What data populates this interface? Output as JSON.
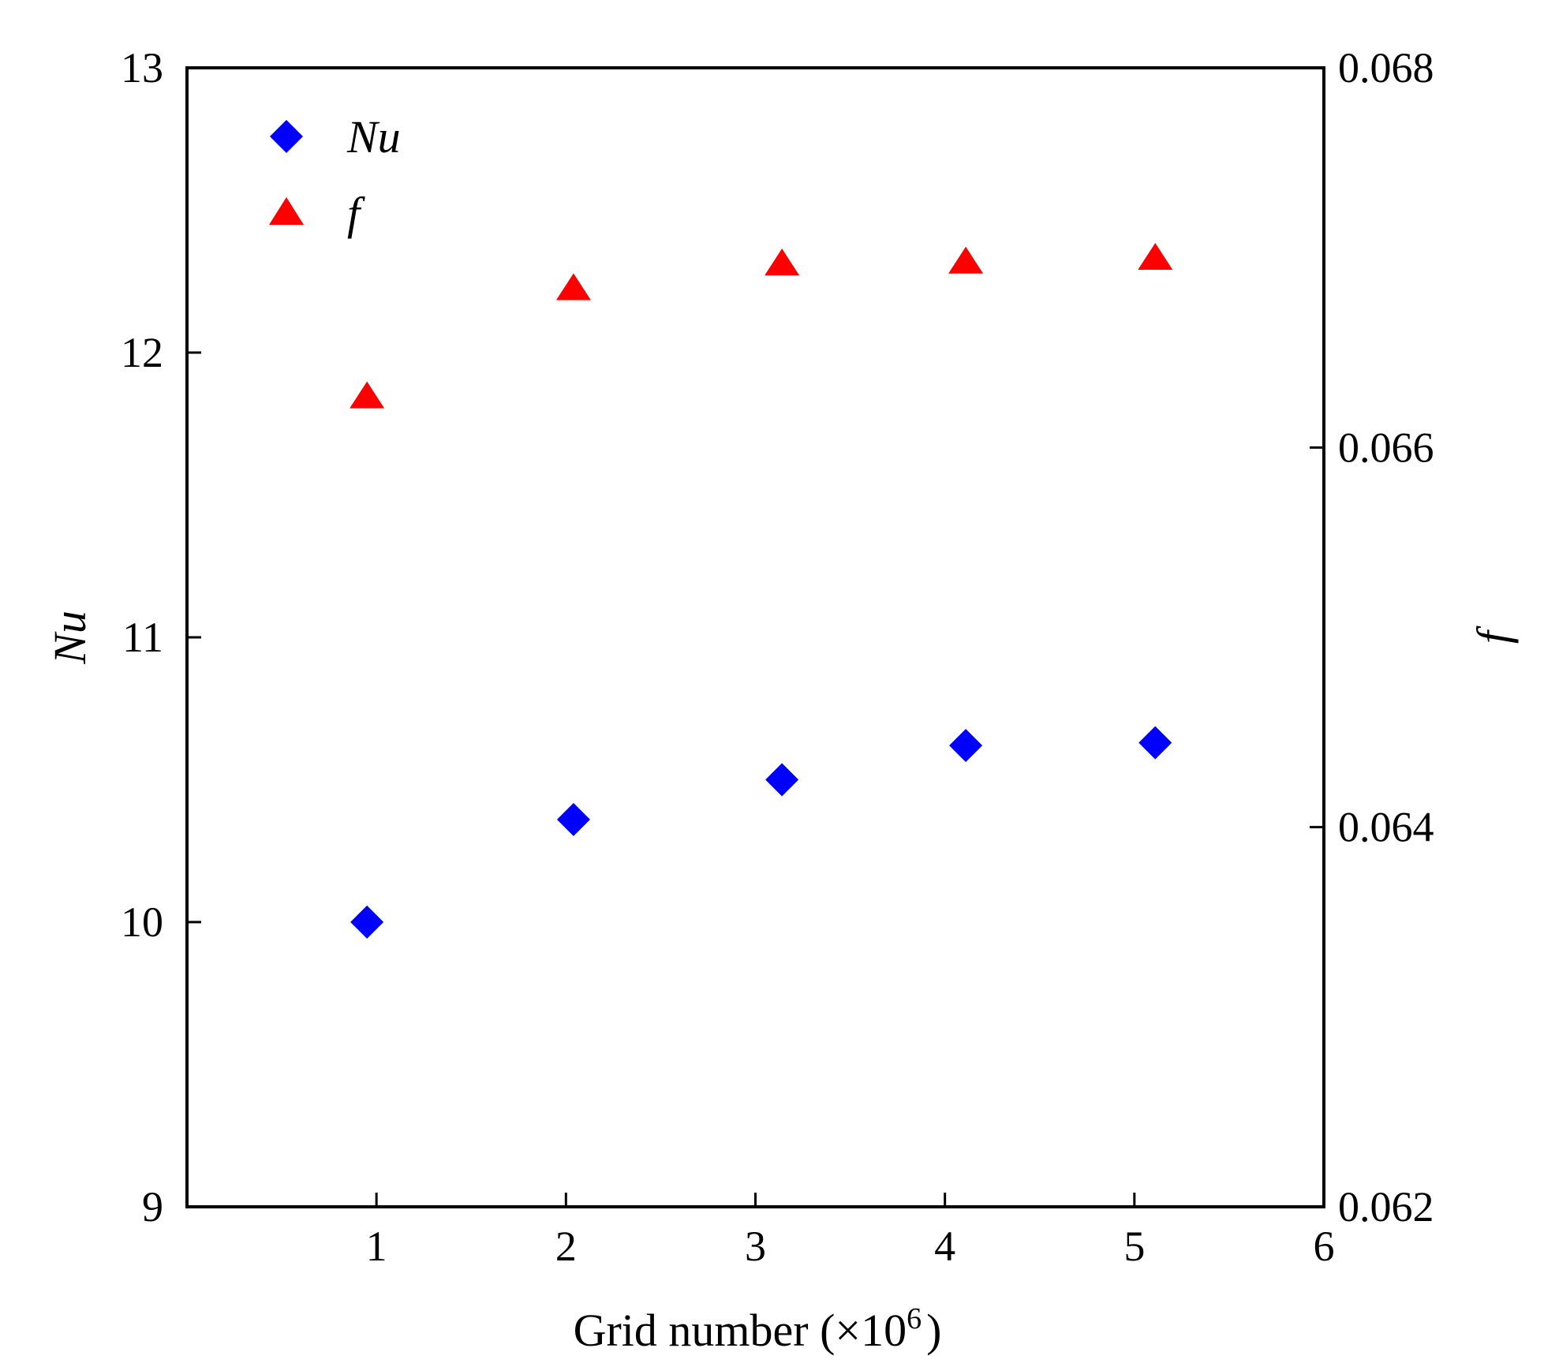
{
  "chart_data": {
    "type": "scatter",
    "title": "",
    "xlabel": "Grid number (×10",
    "xlabel_exponent": "6",
    "xlabel_close": ")",
    "ylabel_left": "Nu",
    "ylabel_right": "f",
    "xlim": [
      0,
      6
    ],
    "ylim_left": [
      9,
      13
    ],
    "ylim_right": [
      0.062,
      0.068
    ],
    "x_ticks": [
      "1",
      "2",
      "3",
      "4",
      "5",
      "6"
    ],
    "y_left_ticks": [
      "9",
      "10",
      "11",
      "12",
      "13"
    ],
    "y_right_ticks": [
      "0.062",
      "0.064",
      "0.066",
      "0.068"
    ],
    "legend_position": "top-left",
    "series": [
      {
        "name": "Nu",
        "axis": "left",
        "marker": "diamond",
        "color": "#0000ff",
        "x": [
          0.95,
          2.04,
          3.14,
          4.11,
          5.11
        ],
        "y": [
          10.0,
          10.36,
          10.5,
          10.62,
          10.63
        ]
      },
      {
        "name": "f",
        "axis": "right",
        "marker": "triangle",
        "color": "#ff0000",
        "x": [
          0.95,
          2.04,
          3.14,
          4.11,
          5.11
        ],
        "y": [
          0.06627,
          0.06684,
          0.06697,
          0.06698,
          0.067
        ]
      }
    ]
  }
}
